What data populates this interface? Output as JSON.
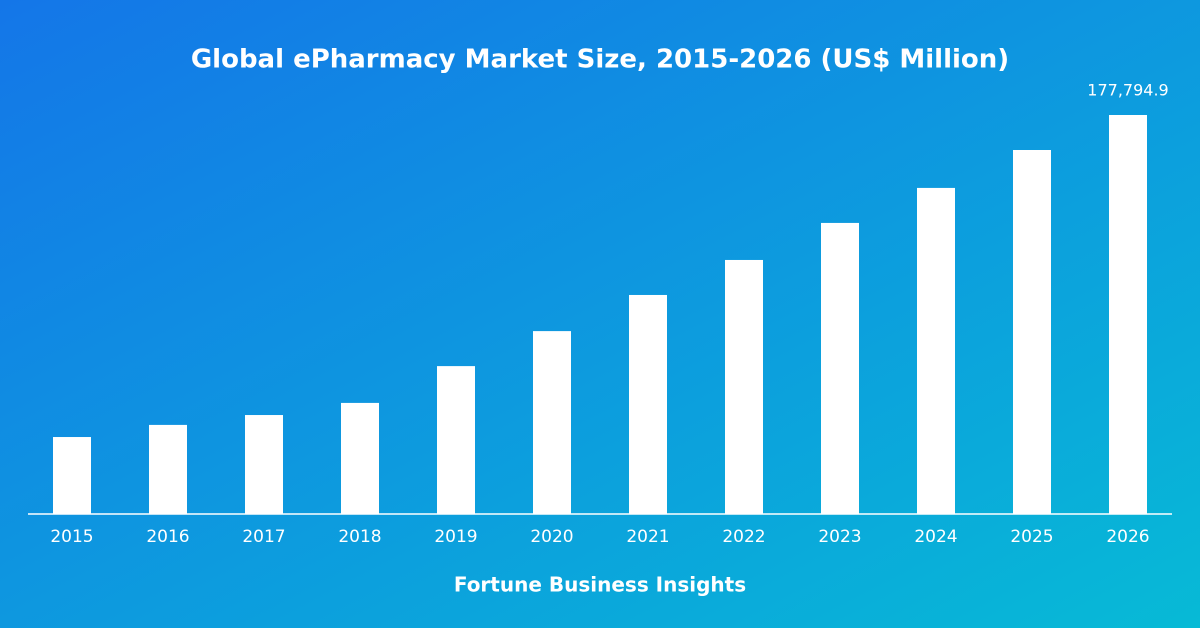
{
  "chart_data": {
    "type": "bar",
    "title": "Global ePharmacy Market Size, 2015-2026 (US$ Million)",
    "source": "Fortune Business Insights",
    "categories": [
      "2015",
      "2016",
      "2017",
      "2018",
      "2019",
      "2020",
      "2021",
      "2022",
      "2023",
      "2024",
      "2025",
      "2026"
    ],
    "values": [
      34300,
      39700,
      44100,
      49500,
      65900,
      81500,
      97600,
      113200,
      129700,
      145300,
      162200,
      177794.9
    ],
    "value_labels": [
      null,
      null,
      null,
      null,
      null,
      null,
      null,
      null,
      null,
      null,
      null,
      "177,794.9"
    ],
    "color": "#ffffff"
  }
}
